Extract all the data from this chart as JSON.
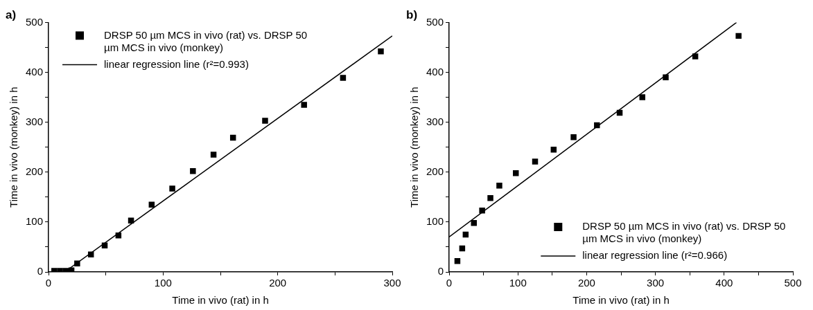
{
  "chart_data": [
    {
      "type": "scatter",
      "title": "a)",
      "xlabel": "Time in vivo (rat) in h",
      "ylabel": "Time in vivo (monkey) in h",
      "xlim": [
        0,
        300
      ],
      "ylim": [
        0,
        500
      ],
      "xticks": [
        0,
        {
          "value": 50,
          "label": null
        },
        100,
        {
          "value": 150,
          "label": null
        },
        200,
        {
          "value": 250,
          "label": null
        },
        300
      ],
      "yticks": [
        0,
        {
          "value": 50,
          "label": null
        },
        100,
        {
          "value": 150,
          "label": null
        },
        200,
        {
          "value": 250,
          "label": null
        },
        300,
        {
          "value": 350,
          "label": null
        },
        400,
        {
          "value": 450,
          "label": null
        },
        500
      ],
      "grid": false,
      "legend": "top left",
      "series": [
        {
          "name": "DRSP 50 µm MCS in vivo (rat) vs. DRSP 50 µm MCS in vivo (monkey)",
          "color": "#000000",
          "marker": "square",
          "x": [
            5,
            10,
            15,
            20,
            25,
            37,
            49,
            61,
            72,
            90,
            108,
            126,
            144,
            161,
            189,
            223,
            257,
            290
          ],
          "values": [
            2,
            2,
            2,
            3,
            17,
            35,
            53,
            73,
            103,
            135,
            167,
            202,
            235,
            269,
            303,
            335,
            389,
            442
          ]
        },
        {
          "name": "linear regression line (r²=0.993)",
          "type": "line",
          "color": "#000000",
          "marker": "none",
          "line_style": "solid",
          "x": [
            14,
            300
          ],
          "values": [
            0,
            473
          ]
        }
      ]
    },
    {
      "type": "scatter",
      "title": "b)",
      "xlabel": "Time in vivo (rat) in h",
      "ylabel": "Time in vivo (monkey) in h",
      "xlim": [
        0,
        500
      ],
      "ylim": [
        0,
        500
      ],
      "xticks": [
        0,
        {
          "value": 50,
          "label": null
        },
        100,
        {
          "value": 150,
          "label": null
        },
        200,
        {
          "value": 250,
          "label": null
        },
        300,
        {
          "value": 350,
          "label": null
        },
        400,
        {
          "value": 450,
          "label": null
        },
        500
      ],
      "yticks": [
        0,
        {
          "value": 50,
          "label": null
        },
        100,
        {
          "value": 150,
          "label": null
        },
        200,
        {
          "value": 250,
          "label": null
        },
        300,
        {
          "value": 350,
          "label": null
        },
        400,
        {
          "value": 450,
          "label": null
        },
        500
      ],
      "grid": false,
      "legend": "bottom right",
      "series": [
        {
          "name": "DRSP 50 µm MCS in vivo (rat) vs. DRSP 50 µm MCS in vivo (monkey)",
          "color": "#000000",
          "marker": "square",
          "x": [
            12,
            19,
            24,
            36,
            48,
            60,
            73,
            97,
            125,
            152,
            181,
            215,
            248,
            281,
            315,
            358,
            421
          ],
          "values": [
            22,
            47,
            75,
            98,
            123,
            148,
            173,
            198,
            221,
            245,
            270,
            294,
            319,
            350,
            390,
            432,
            473
          ]
        },
        {
          "name": "linear regression line (r²=0.966)",
          "type": "line",
          "color": "#000000",
          "marker": "none",
          "line_style": "solid",
          "x": [
            0,
            418
          ],
          "values": [
            70,
            500
          ]
        }
      ]
    }
  ]
}
